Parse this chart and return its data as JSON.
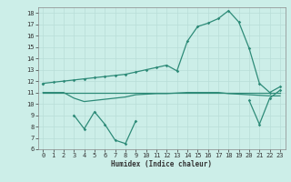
{
  "x": [
    0,
    1,
    2,
    3,
    4,
    5,
    6,
    7,
    8,
    9,
    10,
    11,
    12,
    13,
    14,
    15,
    16,
    17,
    18,
    19,
    20,
    21,
    22,
    23
  ],
  "line1": [
    11.8,
    11.9,
    12.0,
    12.1,
    12.2,
    12.3,
    12.4,
    12.5,
    12.6,
    12.8,
    13.0,
    13.2,
    13.4,
    12.9,
    15.5,
    16.8,
    17.1,
    17.5,
    18.2,
    17.2,
    14.9,
    11.8,
    11.0,
    11.5
  ],
  "line2": [
    11.0,
    11.0,
    11.0,
    11.0,
    11.0,
    11.0,
    11.0,
    11.0,
    11.0,
    11.0,
    11.0,
    11.0,
    11.0,
    11.0,
    11.0,
    11.0,
    11.0,
    11.0,
    11.0,
    11.0,
    11.0,
    11.0,
    11.0,
    11.0
  ],
  "line3": [
    11.8,
    null,
    null,
    9.0,
    7.8,
    9.3,
    8.2,
    6.8,
    6.5,
    8.5,
    null,
    null,
    null,
    null,
    null,
    null,
    null,
    null,
    null,
    null,
    10.3,
    8.2,
    10.5,
    11.2
  ],
  "line4": [
    11.0,
    11.0,
    11.0,
    10.5,
    10.2,
    10.3,
    10.4,
    10.5,
    10.6,
    10.8,
    10.85,
    10.9,
    10.9,
    10.95,
    11.0,
    11.0,
    11.0,
    11.0,
    10.9,
    10.85,
    10.8,
    10.75,
    10.7,
    10.7
  ],
  "color": "#2e8b78",
  "bg_color": "#cceee8",
  "grid_color": "#b8ddd8",
  "xlabel": "Humidex (Indice chaleur)",
  "ylim": [
    6,
    18.5
  ],
  "xlim": [
    -0.5,
    23.5
  ],
  "yticks": [
    6,
    7,
    8,
    9,
    10,
    11,
    12,
    13,
    14,
    15,
    16,
    17,
    18
  ],
  "xticks": [
    0,
    1,
    2,
    3,
    4,
    5,
    6,
    7,
    8,
    9,
    10,
    11,
    12,
    13,
    14,
    15,
    16,
    17,
    18,
    19,
    20,
    21,
    22,
    23
  ]
}
